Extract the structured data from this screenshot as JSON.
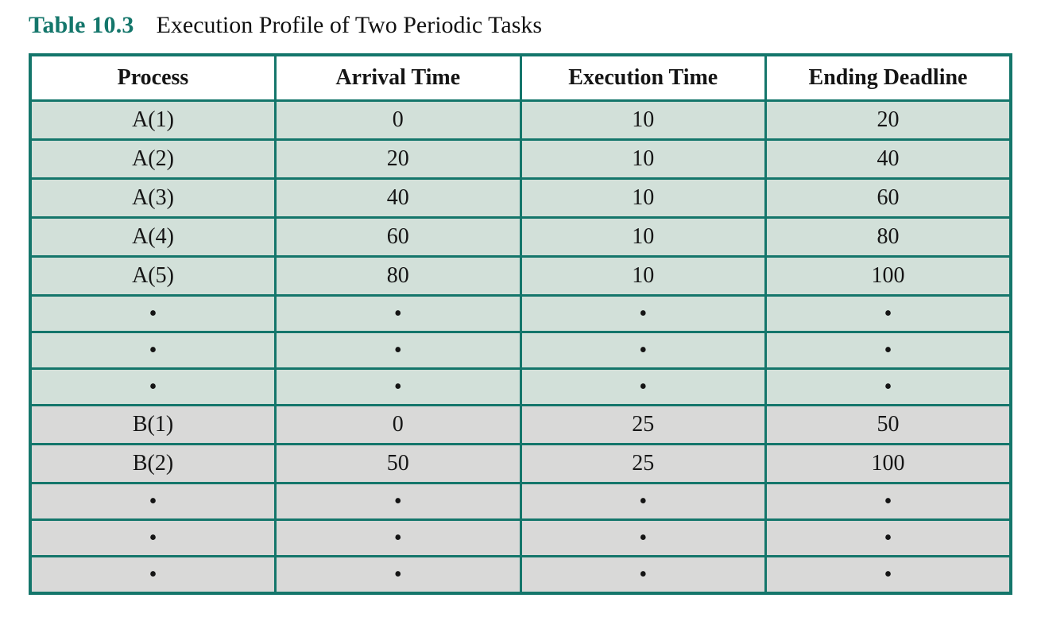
{
  "caption": {
    "label": "Table 10.3",
    "title": "Execution Profile of Two Periodic Tasks"
  },
  "colors": {
    "accent_teal": "#14766b",
    "row_green": "#d2e0d9",
    "row_gray": "#d9d9d8",
    "header_background": "#ffffff",
    "text": "#151515"
  },
  "table": {
    "headers": [
      "Process",
      "Arrival Time",
      "Execution Time",
      "Ending Deadline"
    ],
    "rows": [
      {
        "variant": "green",
        "cells": [
          "A(1)",
          "0",
          "10",
          "20"
        ]
      },
      {
        "variant": "green",
        "cells": [
          "A(2)",
          "20",
          "10",
          "40"
        ]
      },
      {
        "variant": "green",
        "cells": [
          "A(3)",
          "40",
          "10",
          "60"
        ]
      },
      {
        "variant": "green",
        "cells": [
          "A(4)",
          "60",
          "10",
          "80"
        ]
      },
      {
        "variant": "green",
        "cells": [
          "A(5)",
          "80",
          "10",
          "100"
        ]
      },
      {
        "variant": "green dots",
        "cells": [
          "•",
          "•",
          "•",
          "•"
        ]
      },
      {
        "variant": "green dots",
        "cells": [
          "•",
          "•",
          "•",
          "•"
        ]
      },
      {
        "variant": "green dots",
        "cells": [
          "•",
          "•",
          "•",
          "•"
        ]
      },
      {
        "variant": "gray",
        "cells": [
          "B(1)",
          "0",
          "25",
          "50"
        ]
      },
      {
        "variant": "gray",
        "cells": [
          "B(2)",
          "50",
          "25",
          "100"
        ]
      },
      {
        "variant": "gray dots",
        "cells": [
          "•",
          "•",
          "•",
          "•"
        ]
      },
      {
        "variant": "gray dots",
        "cells": [
          "•",
          "•",
          "•",
          "•"
        ]
      },
      {
        "variant": "gray dots",
        "cells": [
          "•",
          "•",
          "•",
          "•"
        ]
      }
    ]
  }
}
